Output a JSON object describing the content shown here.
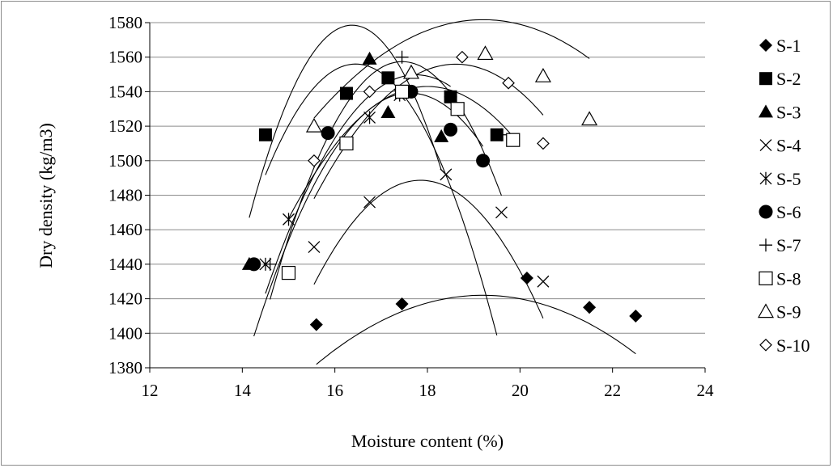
{
  "chart_data": {
    "type": "scatter",
    "title": "",
    "xlabel": "Moisture content (%)",
    "ylabel": "Dry density (kg/m3)",
    "xlim": [
      12,
      24
    ],
    "ylim": [
      1380,
      1580
    ],
    "xticks": [
      12,
      14,
      16,
      18,
      20,
      22,
      24
    ],
    "yticks": [
      1380,
      1400,
      1420,
      1440,
      1460,
      1480,
      1500,
      1520,
      1540,
      1560,
      1580
    ],
    "grid": "horizontal",
    "legend_position": "right",
    "trendline": "polynomial (2nd order) per series",
    "series": [
      {
        "name": "S-1",
        "marker": "diamond-filled",
        "x": [
          15.6,
          17.45,
          20.15,
          21.5,
          22.5
        ],
        "y": [
          1405,
          1417,
          1432,
          1415,
          1410
        ],
        "fit": [
          -3.1,
          119,
          280
        ]
      },
      {
        "name": "S-2",
        "marker": "square-filled",
        "x": [
          14.5,
          16.25,
          17.15,
          18.5,
          19.5
        ],
        "y": [
          1515,
          1539,
          1548,
          1537,
          1515
        ],
        "fit": [
          -16.9,
          556,
          -3017
        ]
      },
      {
        "name": "S-3",
        "marker": "triangle-filled",
        "x": [
          14.15,
          16.75,
          17.15,
          18.3
        ],
        "y": [
          1440,
          1559,
          1528,
          1514
        ],
        "fit": [
          -22.6,
          740,
          -4479
        ]
      },
      {
        "name": "S-4",
        "marker": "x",
        "x": [
          15.55,
          16.75,
          18.4,
          19.6,
          20.5
        ],
        "y": [
          1450,
          1476,
          1492,
          1470,
          1430
        ],
        "fit": [
          -11.4,
          407,
          -2144
        ]
      },
      {
        "name": "S-5",
        "marker": "asterisk",
        "x": [
          14.5,
          15.0,
          16.75,
          17.4,
          18.5
        ],
        "y": [
          1440,
          1466,
          1525,
          1538,
          1537
        ],
        "fit": [
          -12.0,
          426,
          -2231
        ]
      },
      {
        "name": "S-6",
        "marker": "circle-filled",
        "x": [
          14.25,
          15.85,
          17.65,
          18.5,
          19.2
        ],
        "y": [
          1440,
          1516,
          1540,
          1518,
          1500
        ],
        "fit": [
          -12.4,
          437,
          -2311
        ]
      },
      {
        "name": "S-7",
        "marker": "plus",
        "x": [
          14.6,
          17.45,
          18.5,
          19.6
        ],
        "y": [
          1440,
          1560,
          1537,
          1515
        ],
        "fit": [
          -16.9,
          590,
          -3592
        ]
      },
      {
        "name": "S-8",
        "marker": "square-open",
        "x": [
          15.0,
          16.25,
          17.45,
          18.65,
          19.85
        ],
        "y": [
          1435,
          1510,
          1540,
          1530,
          1512
        ],
        "fit": [
          -8.5,
          306,
          -1211
        ]
      },
      {
        "name": "S-9",
        "marker": "triangle-open",
        "x": [
          15.55,
          17.65,
          19.25,
          20.5,
          21.5
        ],
        "y": [
          1520,
          1551,
          1562,
          1549,
          1524
        ],
        "fit": [
          -4.27,
          164,
          7
        ]
      },
      {
        "name": "S-10",
        "marker": "diamond-open",
        "x": [
          15.55,
          16.75,
          18.75,
          19.75,
          20.5
        ],
        "y": [
          1500,
          1540,
          1560,
          1545,
          1510
        ],
        "fit": [
          -8.3,
          309,
          -1320
        ]
      }
    ]
  }
}
